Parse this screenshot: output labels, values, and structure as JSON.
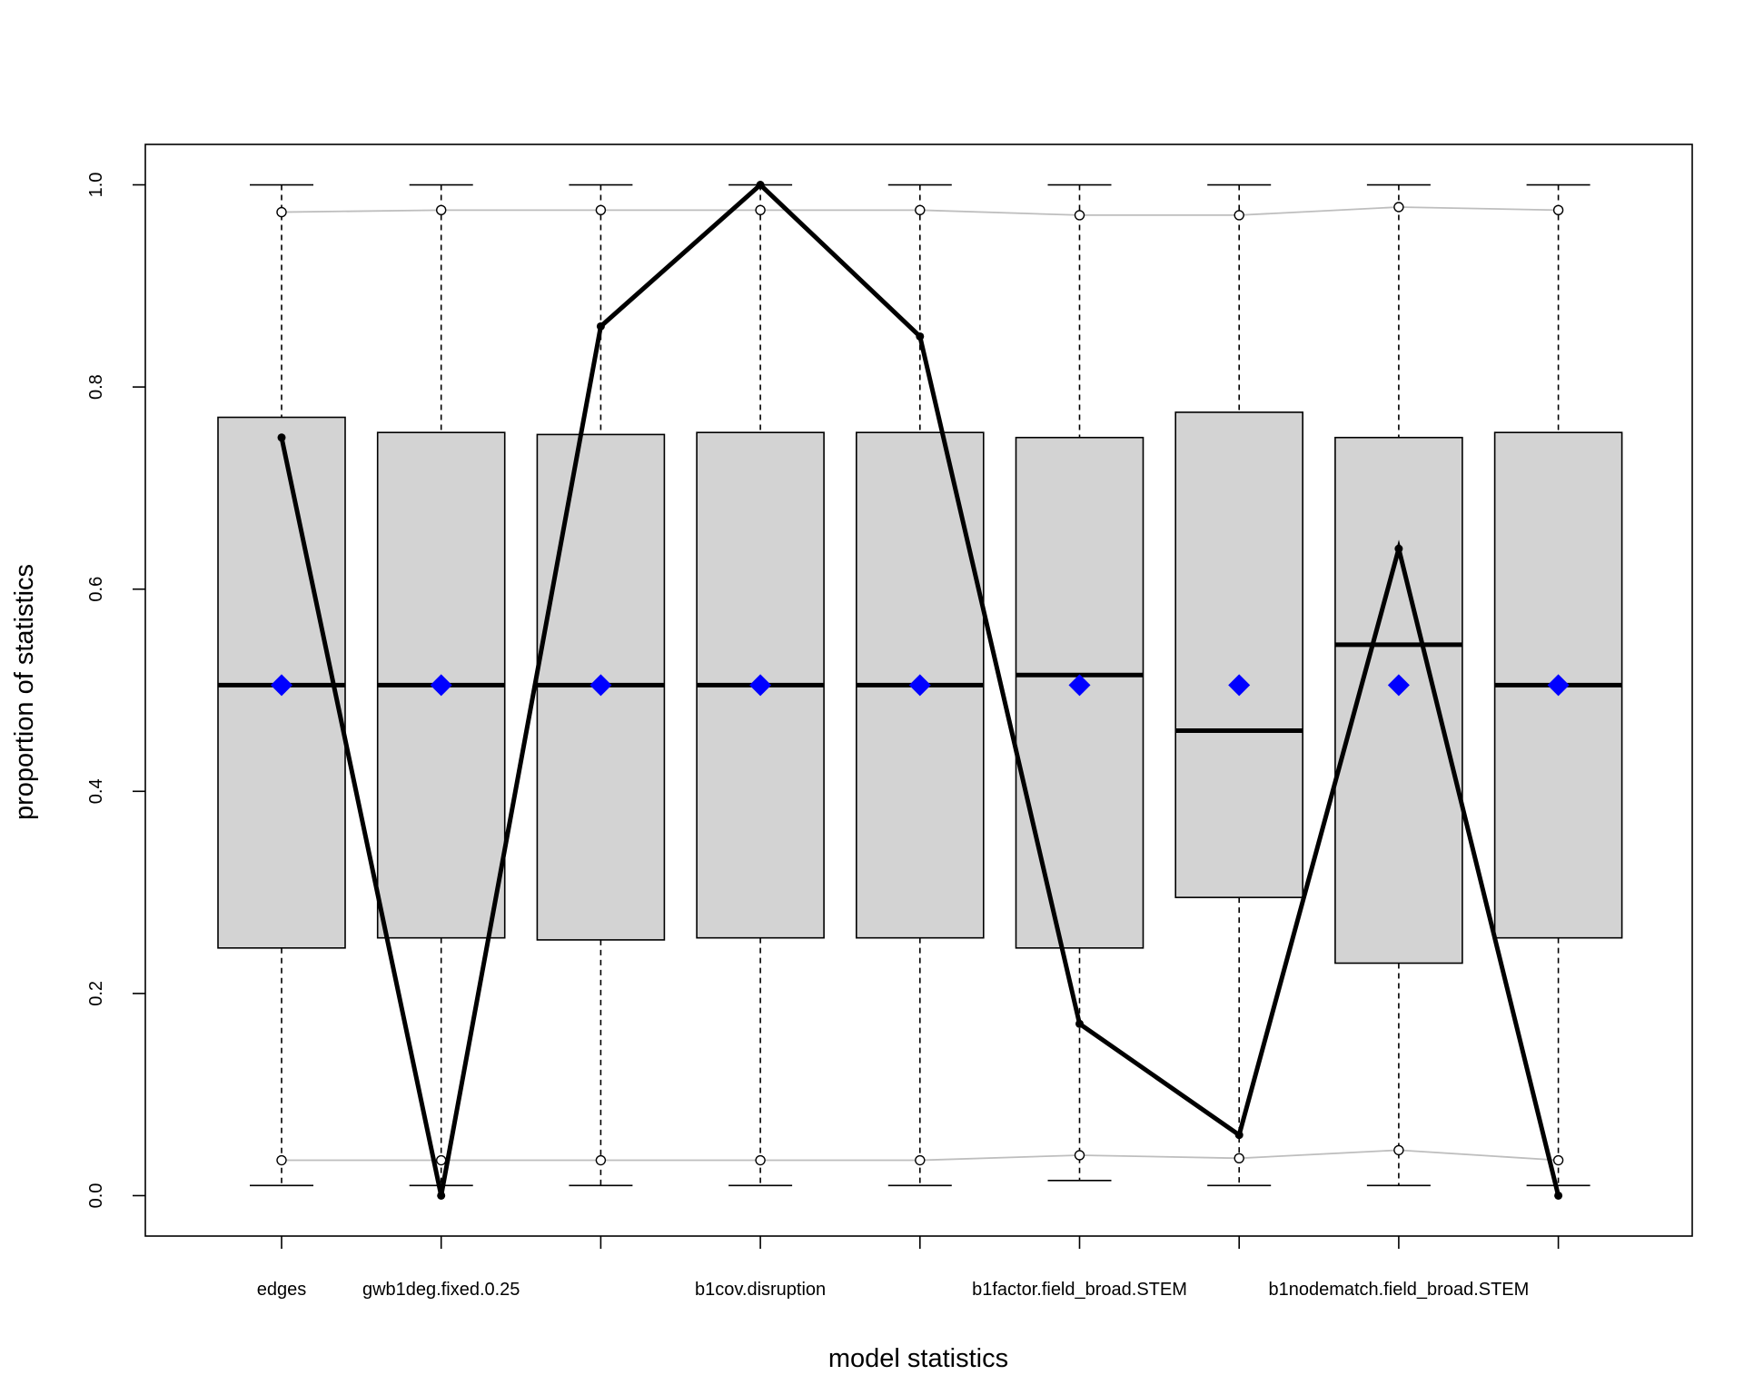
{
  "chart_data": {
    "type": "box",
    "title": "",
    "xlabel": "model statistics",
    "ylabel": "proportion of statistics",
    "ylim": [
      -0.04,
      1.04
    ],
    "yticks": [
      0.0,
      0.2,
      0.4,
      0.6,
      0.8,
      1.0
    ],
    "ytick_labels": [
      "0.0",
      "0.2",
      "0.4",
      "0.6",
      "0.8",
      "1.0"
    ],
    "categories": [
      "edges",
      "gwb1deg.fixed.0.25",
      "",
      "b1cov.disruption",
      "",
      "b1factor.field_broad.STEM",
      "",
      "b1nodematch.field_broad.STEM",
      ""
    ],
    "boxes": [
      {
        "whisker_low": 0.01,
        "q1": 0.245,
        "median": 0.505,
        "q3": 0.77,
        "whisker_high": 1.0
      },
      {
        "whisker_low": 0.01,
        "q1": 0.255,
        "median": 0.505,
        "q3": 0.755,
        "whisker_high": 1.0
      },
      {
        "whisker_low": 0.01,
        "q1": 0.253,
        "median": 0.505,
        "q3": 0.753,
        "whisker_high": 1.0
      },
      {
        "whisker_low": 0.01,
        "q1": 0.255,
        "median": 0.505,
        "q3": 0.755,
        "whisker_high": 1.0
      },
      {
        "whisker_low": 0.01,
        "q1": 0.255,
        "median": 0.505,
        "q3": 0.755,
        "whisker_high": 1.0
      },
      {
        "whisker_low": 0.015,
        "q1": 0.245,
        "median": 0.515,
        "q3": 0.75,
        "whisker_high": 1.0
      },
      {
        "whisker_low": 0.01,
        "q1": 0.295,
        "median": 0.46,
        "q3": 0.775,
        "whisker_high": 1.0
      },
      {
        "whisker_low": 0.01,
        "q1": 0.23,
        "median": 0.545,
        "q3": 0.75,
        "whisker_high": 1.0
      },
      {
        "whisker_low": 0.01,
        "q1": 0.255,
        "median": 0.505,
        "q3": 0.755,
        "whisker_high": 1.0
      }
    ],
    "means": [
      0.505,
      0.505,
      0.505,
      0.505,
      0.505,
      0.505,
      0.505,
      0.505,
      0.505
    ],
    "observed": [
      0.75,
      0.0,
      0.86,
      1.0,
      0.85,
      0.17,
      0.06,
      0.64,
      0.0
    ],
    "upper_band": [
      0.973,
      0.975,
      0.975,
      0.975,
      0.975,
      0.97,
      0.97,
      0.978,
      0.975
    ],
    "lower_band": [
      0.035,
      0.035,
      0.035,
      0.035,
      0.035,
      0.04,
      0.037,
      0.045,
      0.035
    ],
    "colors": {
      "box_fill": "#d3d3d3",
      "mean_marker": "#0000ff",
      "observed_line": "#000000",
      "band_line": "#bebebe"
    },
    "grid": false,
    "legend": "none"
  }
}
